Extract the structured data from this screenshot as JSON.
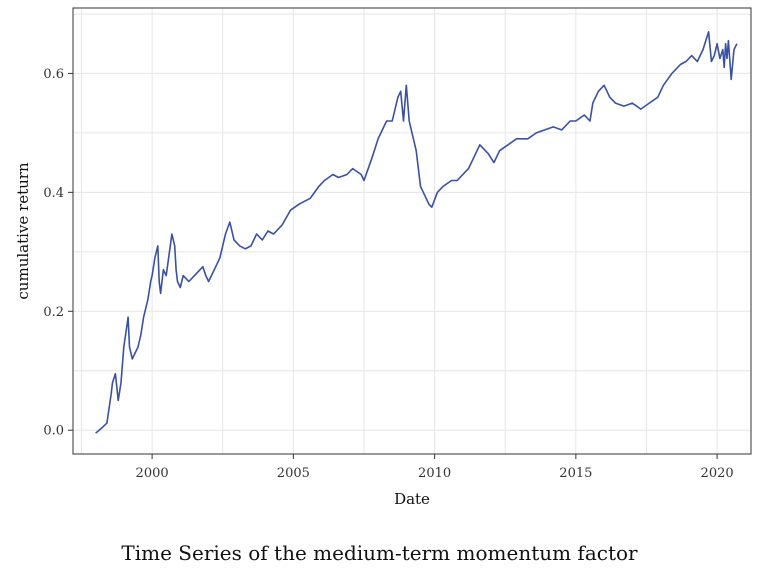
{
  "chart_data": {
    "type": "line",
    "xlabel": "Date",
    "ylabel": "cumulative return",
    "caption": "Time Series of the medium-term momentum factor",
    "xlim": [
      1997.2,
      2021.2
    ],
    "ylim": [
      -0.04,
      0.71
    ],
    "x_ticks": [
      2000,
      2005,
      2010,
      2015,
      2020
    ],
    "x_tick_labels": [
      "2000",
      "2005",
      "2010",
      "2015",
      "2020"
    ],
    "y_ticks": [
      0.0,
      0.2,
      0.4,
      0.6
    ],
    "y_tick_labels": [
      "0.0",
      "0.2",
      "0.4",
      "0.6"
    ],
    "grid": true,
    "line_color": "#3a51a3",
    "series": [
      {
        "x": [
          1998.0,
          1998.2,
          1998.4,
          1998.55,
          1998.6,
          1998.7,
          1998.8,
          1998.9,
          1999.0,
          1999.15,
          1999.2,
          1999.3,
          1999.5,
          1999.6,
          1999.7,
          1999.85,
          1999.95,
          2000.0,
          2000.1,
          2000.2,
          2000.25,
          2000.3,
          2000.4,
          2000.5,
          2000.7,
          2000.8,
          2000.85,
          2000.9,
          2001.0,
          2001.1,
          2001.3,
          2001.5,
          2001.8,
          2001.9,
          2002.0,
          2002.2,
          2002.4,
          2002.6,
          2002.75,
          2002.9,
          2003.1,
          2003.3,
          2003.5,
          2003.7,
          2003.9,
          2004.1,
          2004.3,
          2004.6,
          2004.9,
          2005.2,
          2005.6,
          2005.9,
          2006.1,
          2006.4,
          2006.6,
          2006.9,
          2007.1,
          2007.4,
          2007.5,
          2007.8,
          2008.0,
          2008.2,
          2008.3,
          2008.5,
          2008.7,
          2008.8,
          2008.9,
          2009.0,
          2009.1,
          2009.2,
          2009.35,
          2009.5,
          2009.6,
          2009.8,
          2009.9,
          2010.1,
          2010.3,
          2010.6,
          2010.8,
          2011.0,
          2011.2,
          2011.4,
          2011.6,
          2011.8,
          2011.9,
          2012.1,
          2012.3,
          2012.6,
          2012.9,
          2013.3,
          2013.6,
          2013.9,
          2014.2,
          2014.5,
          2014.8,
          2015.0,
          2015.3,
          2015.5,
          2015.6,
          2015.8,
          2016.0,
          2016.2,
          2016.4,
          2016.7,
          2017.0,
          2017.3,
          2017.6,
          2017.9,
          2018.1,
          2018.4,
          2018.7,
          2018.9,
          2019.1,
          2019.3,
          2019.5,
          2019.7,
          2019.8,
          2019.9,
          2020.0,
          2020.1,
          2020.2,
          2020.25,
          2020.3,
          2020.35,
          2020.4,
          2020.5,
          2020.6,
          2020.7
        ],
        "y": [
          -0.005,
          0.003,
          0.012,
          0.06,
          0.08,
          0.095,
          0.05,
          0.08,
          0.14,
          0.19,
          0.14,
          0.12,
          0.14,
          0.16,
          0.19,
          0.22,
          0.25,
          0.26,
          0.29,
          0.31,
          0.25,
          0.23,
          0.27,
          0.26,
          0.33,
          0.31,
          0.27,
          0.25,
          0.24,
          0.26,
          0.25,
          0.26,
          0.275,
          0.26,
          0.25,
          0.27,
          0.29,
          0.33,
          0.35,
          0.32,
          0.31,
          0.305,
          0.31,
          0.33,
          0.32,
          0.335,
          0.33,
          0.345,
          0.37,
          0.38,
          0.39,
          0.41,
          0.42,
          0.43,
          0.425,
          0.43,
          0.44,
          0.43,
          0.42,
          0.46,
          0.49,
          0.51,
          0.52,
          0.52,
          0.56,
          0.57,
          0.52,
          0.58,
          0.52,
          0.5,
          0.47,
          0.41,
          0.4,
          0.38,
          0.375,
          0.4,
          0.41,
          0.42,
          0.42,
          0.43,
          0.44,
          0.46,
          0.48,
          0.47,
          0.465,
          0.45,
          0.47,
          0.48,
          0.49,
          0.49,
          0.5,
          0.505,
          0.51,
          0.505,
          0.52,
          0.52,
          0.53,
          0.52,
          0.55,
          0.57,
          0.58,
          0.56,
          0.55,
          0.545,
          0.55,
          0.54,
          0.55,
          0.56,
          0.58,
          0.6,
          0.615,
          0.62,
          0.63,
          0.62,
          0.64,
          0.67,
          0.62,
          0.63,
          0.65,
          0.625,
          0.64,
          0.61,
          0.65,
          0.625,
          0.655,
          0.59,
          0.64,
          0.65
        ]
      }
    ]
  }
}
